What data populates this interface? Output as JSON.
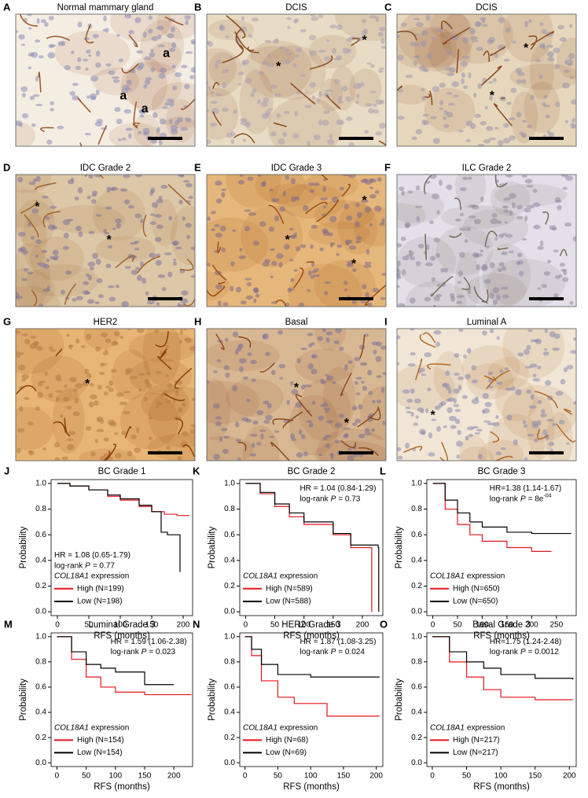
{
  "panels": [
    {
      "letter": "A",
      "title": "Normal mammary gland",
      "annotations": [
        "a",
        "a",
        "a"
      ]
    },
    {
      "letter": "B",
      "title": "DCIS",
      "annotations": [
        "*",
        "*"
      ]
    },
    {
      "letter": "C",
      "title": "DCIS",
      "annotations": [
        "*",
        "*"
      ]
    },
    {
      "letter": "D",
      "title": "IDC Grade 2",
      "annotations": [
        "*",
        "*"
      ]
    },
    {
      "letter": "E",
      "title": "IDC Grade 3",
      "annotations": [
        "*",
        "*",
        "*"
      ]
    },
    {
      "letter": "F",
      "title": "ILC Grade 2",
      "annotations": []
    },
    {
      "letter": "G",
      "title": "HER2",
      "annotations": [
        "*"
      ]
    },
    {
      "letter": "H",
      "title": "Basal",
      "annotations": [
        "*",
        "*"
      ]
    },
    {
      "letter": "I",
      "title": "Luminal A",
      "annotations": [
        "*"
      ]
    }
  ],
  "km_plots": [
    {
      "type": "step",
      "letter": "J",
      "title": "BC Grade 1",
      "xlabel": "RFS (months)",
      "ylabel": "Probability",
      "hr": "HR = 1.08 (0.65-1.79)",
      "logrank": "log-rank",
      "p_symbol": "P",
      "p_value": "= 0.77",
      "gene": "COL18A1",
      "legend_suffix": "expression",
      "stats_position": "middle-left",
      "xlim": [
        -10,
        215
      ],
      "xticks": [
        0,
        50,
        100,
        150,
        200
      ],
      "ylim": [
        -0.03,
        1.03
      ],
      "yticks": [
        {
          "value": 0,
          "label": "0.0"
        },
        0.2,
        0.4,
        0.6,
        0.8,
        {
          "value": 1,
          "label": "1.0"
        }
      ],
      "series": [
        {
          "name": "High (N=199)",
          "color": "#e8141c",
          "x": [
            0,
            20,
            50,
            80,
            100,
            130,
            150,
            170,
            190,
            210
          ],
          "y": [
            1,
            0.98,
            0.95,
            0.9,
            0.87,
            0.82,
            0.78,
            0.76,
            0.75,
            0.75
          ]
        },
        {
          "name": "Low (N=198)",
          "color": "#000000",
          "x": [
            0,
            20,
            50,
            80,
            100,
            130,
            150,
            165,
            175,
            190,
            195
          ],
          "y": [
            1,
            0.98,
            0.95,
            0.91,
            0.88,
            0.83,
            0.78,
            0.62,
            0.6,
            0.6,
            0.31
          ]
        }
      ]
    },
    {
      "type": "step",
      "letter": "K",
      "title": "BC Grade 2",
      "xlabel": "RFS (months)",
      "ylabel": "Probability",
      "hr": "HR = 1.04 (0.84-1.29)",
      "logrank": "log-rank",
      "p_symbol": "P",
      "p_value": "= 0.73",
      "gene": "COL18A1",
      "legend_suffix": "expression",
      "stats_position": "upper-right",
      "xlim": [
        -10,
        235
      ],
      "xticks": [
        0,
        50,
        100,
        150,
        200
      ],
      "ylim": [
        -0.03,
        1.03
      ],
      "yticks": [
        {
          "value": 0,
          "label": "0.0"
        },
        0.2,
        0.4,
        0.6,
        0.8,
        {
          "value": 1,
          "label": "1.0"
        }
      ],
      "series": [
        {
          "name": "High (N=589)",
          "color": "#e8141c",
          "x": [
            0,
            25,
            50,
            75,
            100,
            150,
            180,
            215,
            216
          ],
          "y": [
            1,
            0.92,
            0.82,
            0.74,
            0.68,
            0.6,
            0.5,
            0.5,
            0
          ]
        },
        {
          "name": "Low (N=588)",
          "color": "#000000",
          "x": [
            0,
            25,
            50,
            75,
            100,
            150,
            180,
            227,
            228
          ],
          "y": [
            1,
            0.93,
            0.84,
            0.77,
            0.7,
            0.61,
            0.52,
            0.5,
            0
          ]
        }
      ]
    },
    {
      "type": "step",
      "letter": "L",
      "title": "BC Grade 3",
      "xlabel": "RFS (months)",
      "ylabel": "Probability",
      "hr": "HR=1.38 (1.14-1.67)",
      "logrank": "log-rank",
      "p_symbol": "P",
      "p_value": "= 8e",
      "p_exp": "-04",
      "gene": "COL18A1",
      "legend_suffix": "expression",
      "stats_position": "upper-right",
      "xlim": [
        -12,
        290
      ],
      "xticks": [
        0,
        50,
        100,
        150,
        200,
        250
      ],
      "ylim": [
        -0.03,
        1.03
      ],
      "yticks": [
        {
          "value": 0,
          "label": "0.0"
        },
        0.2,
        0.4,
        0.6,
        0.8,
        {
          "value": 1,
          "label": "1.0"
        }
      ],
      "series": [
        {
          "name": "High (N=650)",
          "color": "#e8141c",
          "x": [
            0,
            25,
            50,
            75,
            100,
            150,
            200,
            240
          ],
          "y": [
            1,
            0.8,
            0.68,
            0.6,
            0.55,
            0.5,
            0.47,
            0.47
          ]
        },
        {
          "name": "Low (N=650)",
          "color": "#000000",
          "x": [
            0,
            25,
            50,
            75,
            100,
            150,
            200,
            280
          ],
          "y": [
            1,
            0.87,
            0.77,
            0.7,
            0.66,
            0.62,
            0.61,
            0.61
          ]
        }
      ]
    },
    {
      "type": "step",
      "letter": "M",
      "title": "Luminal Grade 3",
      "xlabel": "RFS (months)",
      "ylabel": "Probability",
      "hr": "HR = 1.59 (1.06-2.38)",
      "logrank": "log-rank",
      "p_symbol": "P",
      "p_value": "= 0.023",
      "gene": "COL18A1",
      "legend_suffix": "expression",
      "stats_position": "upper-right",
      "xlim": [
        -10,
        232
      ],
      "xticks": [
        0,
        50,
        100,
        150,
        200
      ],
      "ylim": [
        -0.03,
        1.03
      ],
      "yticks": [
        {
          "value": 0,
          "label": "0.0"
        },
        0.2,
        0.4,
        0.6,
        0.8,
        {
          "value": 1,
          "label": "1.0"
        }
      ],
      "series": [
        {
          "name": "High (N=154)",
          "color": "#e8141c",
          "x": [
            0,
            25,
            50,
            75,
            100,
            150,
            230
          ],
          "y": [
            1,
            0.82,
            0.68,
            0.6,
            0.56,
            0.54,
            0.54
          ]
        },
        {
          "name": "Low (N=154)",
          "color": "#000000",
          "x": [
            0,
            25,
            50,
            75,
            100,
            150,
            200
          ],
          "y": [
            1,
            0.88,
            0.78,
            0.75,
            0.72,
            0.62,
            0.62
          ]
        }
      ]
    },
    {
      "type": "step",
      "letter": "N",
      "title": "HER2 Grade 3",
      "xlabel": "RFS (months)",
      "ylabel": "Probability",
      "hr": "HR = 1.87 (1.08-3.25)",
      "logrank": "log-rank",
      "p_symbol": "P",
      "p_value": "= 0.024",
      "gene": "COL18A1",
      "legend_suffix": "expression",
      "stats_position": "upper-right",
      "xlim": [
        -8,
        210
      ],
      "xticks": [
        0,
        50,
        100,
        150,
        200
      ],
      "ylim": [
        -0.03,
        1.03
      ],
      "yticks": [
        {
          "value": 0,
          "label": "0.0"
        },
        0.2,
        0.4,
        0.6,
        0.8,
        {
          "value": 1,
          "label": "1.0"
        }
      ],
      "series": [
        {
          "name": "High (N=68)",
          "color": "#e8141c",
          "x": [
            0,
            10,
            25,
            50,
            75,
            100,
            120,
            125,
            205
          ],
          "y": [
            1,
            0.85,
            0.65,
            0.52,
            0.47,
            0.47,
            0.47,
            0.37,
            0.37
          ]
        },
        {
          "name": "Low (N=69)",
          "color": "#000000",
          "x": [
            0,
            10,
            25,
            50,
            100,
            150,
            205
          ],
          "y": [
            1,
            0.9,
            0.78,
            0.7,
            0.68,
            0.68,
            0.68
          ]
        }
      ]
    },
    {
      "type": "step",
      "letter": "O",
      "title": "Basal Grade 3",
      "xlabel": "RFS (months)",
      "ylabel": "Probability",
      "hr": "HR=1.75 (1.24-2.48)",
      "logrank": "log-rank",
      "p_symbol": "P",
      "p_value": "= 0.0012",
      "gene": "COL18A1",
      "legend_suffix": "expression",
      "stats_position": "upper-right",
      "xlim": [
        -8,
        210
      ],
      "xticks": [
        0,
        50,
        100,
        150,
        200
      ],
      "ylim": [
        -0.03,
        1.03
      ],
      "yticks": [
        {
          "value": 0,
          "label": "0.0"
        },
        0.2,
        0.4,
        0.6,
        0.8,
        {
          "value": 1,
          "label": "1.0"
        }
      ],
      "series": [
        {
          "name": "High (N=217)",
          "color": "#e8141c",
          "x": [
            0,
            25,
            50,
            75,
            100,
            150,
            205
          ],
          "y": [
            1,
            0.8,
            0.68,
            0.58,
            0.52,
            0.5,
            0.5
          ]
        },
        {
          "name": "Low (N=217)",
          "color": "#000000",
          "x": [
            0,
            25,
            50,
            75,
            100,
            150,
            205
          ],
          "y": [
            1,
            0.88,
            0.8,
            0.75,
            0.7,
            0.67,
            0.66
          ]
        }
      ]
    }
  ]
}
